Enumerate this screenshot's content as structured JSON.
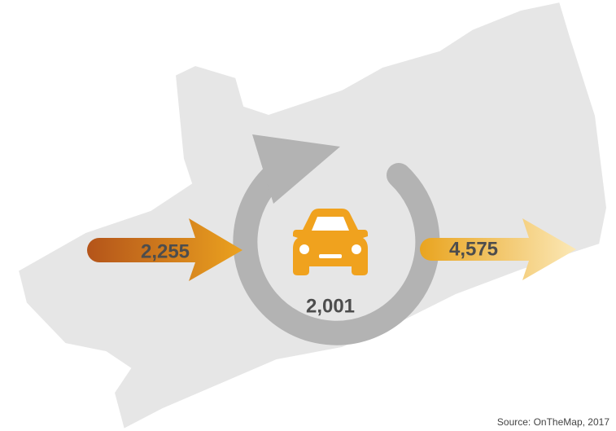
{
  "inflow": "2,255",
  "outflow": "4,575",
  "live_and_work": "2,001",
  "source": "Source: OnTheMap, 2017"
}
